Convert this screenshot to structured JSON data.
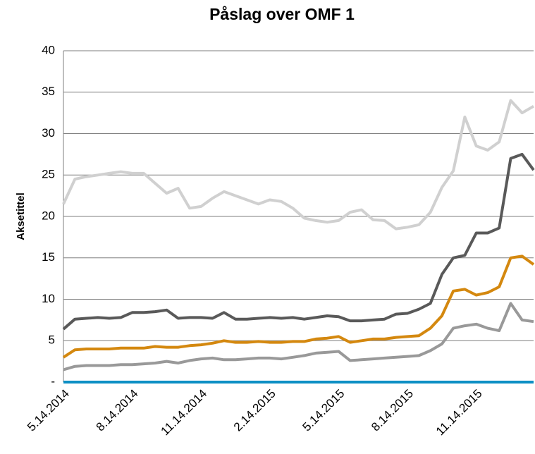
{
  "chart_data": {
    "type": "line",
    "title": "Påslag over OMF 1",
    "y_label": "Aksetittel",
    "categories": [
      "5.14.2014",
      null,
      null,
      null,
      null,
      null,
      "8.14.2014",
      null,
      null,
      null,
      null,
      null,
      "11.14.2014",
      null,
      null,
      null,
      null,
      null,
      "2.14.2015",
      null,
      null,
      null,
      null,
      null,
      "5.14.2015",
      null,
      null,
      null,
      null,
      null,
      "8.14.2015",
      null,
      null,
      null,
      null,
      null,
      "11.14.2015",
      null,
      null,
      null,
      null,
      null
    ],
    "series": [
      {
        "color": "#d0d0d0",
        "values": [
          21.5,
          24.5,
          24.8,
          25.0,
          25.2,
          25.4,
          25.2,
          25.2,
          24.0,
          22.8,
          23.4,
          21.0,
          21.2,
          22.2,
          23.0,
          22.5,
          22.0,
          21.5,
          22.0,
          21.8,
          21.0,
          19.8,
          19.5,
          19.3,
          19.5,
          20.5,
          20.8,
          19.6,
          19.5,
          18.5,
          18.7,
          19.0,
          20.5,
          23.5,
          25.5,
          32.0,
          28.5,
          28.0,
          29.0,
          34.0,
          32.5,
          33.3
        ]
      },
      {
        "color": "#595959",
        "values": [
          6.4,
          7.6,
          7.7,
          7.8,
          7.7,
          7.8,
          8.4,
          8.4,
          8.5,
          8.7,
          7.7,
          7.8,
          7.8,
          7.7,
          8.4,
          7.6,
          7.6,
          7.7,
          7.8,
          7.7,
          7.8,
          7.6,
          7.8,
          8.0,
          7.9,
          7.4,
          7.4,
          7.5,
          7.6,
          8.2,
          8.3,
          8.8,
          9.5,
          13.0,
          15.0,
          15.3,
          18.0,
          18.0,
          18.6,
          27.0,
          27.5,
          25.6
        ]
      },
      {
        "color": "#d4880f",
        "values": [
          3.0,
          3.9,
          4.0,
          4.0,
          4.0,
          4.1,
          4.1,
          4.1,
          4.3,
          4.2,
          4.2,
          4.4,
          4.5,
          4.7,
          5.0,
          4.8,
          4.8,
          4.9,
          4.8,
          4.8,
          4.9,
          4.9,
          5.2,
          5.3,
          5.5,
          4.8,
          5.0,
          5.2,
          5.2,
          5.4,
          5.5,
          5.6,
          6.5,
          8.0,
          11.0,
          11.2,
          10.5,
          10.8,
          11.5,
          15.0,
          15.2,
          14.2
        ]
      },
      {
        "color": "#999999",
        "values": [
          1.5,
          1.9,
          2.0,
          2.0,
          2.0,
          2.1,
          2.1,
          2.2,
          2.3,
          2.5,
          2.3,
          2.6,
          2.8,
          2.9,
          2.7,
          2.7,
          2.8,
          2.9,
          2.9,
          2.8,
          3.0,
          3.2,
          3.5,
          3.6,
          3.7,
          2.6,
          2.7,
          2.8,
          2.9,
          3.0,
          3.1,
          3.2,
          3.8,
          4.6,
          6.5,
          6.8,
          7.0,
          6.5,
          6.2,
          9.5,
          7.5,
          7.3
        ]
      },
      {
        "color": "#0d8fc4",
        "values": [
          0,
          0,
          0,
          0,
          0,
          0,
          0,
          0,
          0,
          0,
          0,
          0,
          0,
          0,
          0,
          0,
          0,
          0,
          0,
          0,
          0,
          0,
          0,
          0,
          0,
          0,
          0,
          0,
          0,
          0,
          0,
          0,
          0,
          0,
          0,
          0,
          0,
          0,
          0,
          0,
          0,
          0
        ]
      }
    ],
    "ylim": [
      0,
      40
    ],
    "yticks": [
      {
        "value": 0,
        "label": "-"
      },
      5,
      10,
      15,
      20,
      25,
      30,
      35,
      40
    ],
    "grid": true
  }
}
